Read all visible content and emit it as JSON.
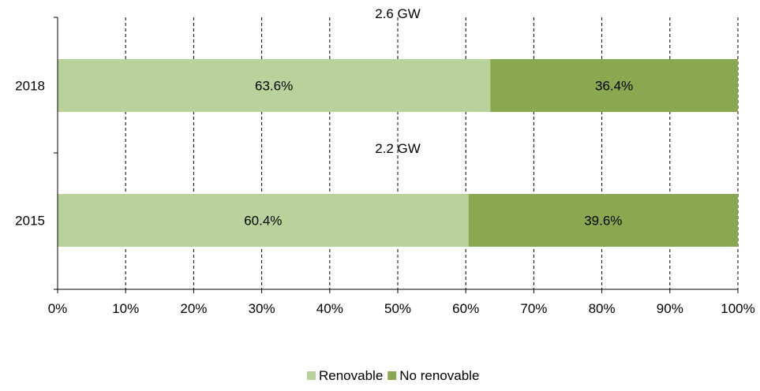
{
  "chart_data": {
    "type": "bar",
    "orientation": "horizontal",
    "stacked": true,
    "percent": true,
    "categories": [
      "2018",
      "2015"
    ],
    "category_totals": [
      "2.6 GW",
      "2.2 GW"
    ],
    "series": [
      {
        "name": "Renovable",
        "values": [
          63.6,
          60.4
        ],
        "labels": [
          "63.6%",
          "60.4%"
        ],
        "color": "#b9d29b"
      },
      {
        "name": "No renovable",
        "values": [
          36.4,
          39.6
        ],
        "labels": [
          "36.4%",
          "39.6%"
        ],
        "color": "#8aa84f"
      }
    ],
    "xlim": [
      0,
      100
    ],
    "xticks": [
      "0%",
      "10%",
      "20%",
      "30%",
      "40%",
      "50%",
      "60%",
      "70%",
      "80%",
      "90%",
      "100%"
    ],
    "grid": "vertical dashed",
    "legend": "bottom"
  }
}
